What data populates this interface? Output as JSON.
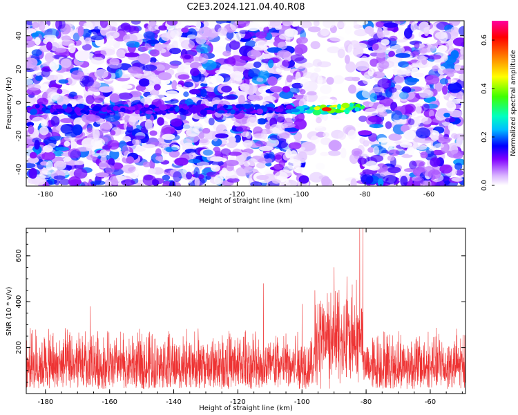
{
  "title": "C2E3.2024.121.04.40.R08",
  "chart_data": [
    {
      "type": "heatmap",
      "xlabel": "Height of straight line (km)",
      "ylabel": "Frequency (Hz)",
      "xlim": [
        -186,
        -49
      ],
      "ylim": [
        -50,
        49
      ],
      "xticks": [
        -180,
        -160,
        -140,
        -120,
        -100,
        -80,
        -60
      ],
      "yticks": [
        -40,
        -20,
        0,
        20,
        40
      ],
      "xtick_labels": [
        "-180",
        "-160",
        "-140",
        "-120",
        "-100",
        "-80",
        "-60"
      ],
      "ytick_labels": [
        "-40",
        "-20",
        "0",
        "20",
        "40"
      ],
      "colorbar": {
        "label": "Normalized spectral amplitude",
        "range": [
          0.0,
          0.68
        ],
        "ticks": [
          0.0,
          0.2,
          0.4,
          0.6
        ],
        "tick_labels": [
          "0.0",
          "0.2",
          "0.4",
          "0.6"
        ],
        "colors": [
          "#ffffff",
          "#d9b3ff",
          "#8000ff",
          "#0000ff",
          "#00bfff",
          "#00ffc0",
          "#40ff00",
          "#ffff00",
          "#ff8000",
          "#ff0000",
          "#ff00a0"
        ]
      },
      "features": {
        "signal_band": {
          "frequency_hz": -4,
          "x_range_km": [
            -186,
            -81
          ],
          "peak_x_km": -92,
          "peak_amplitude": 0.6
        },
        "low_amplitude_gap_km": [
          -99,
          -81
        ]
      }
    },
    {
      "type": "line",
      "xlabel": "Height of straight line (km)",
      "ylabel": "SNR (10 * v/v)",
      "xlim": [
        -186,
        -49
      ],
      "ylim": [
        0,
        720
      ],
      "xticks": [
        -180,
        -160,
        -140,
        -120,
        -100,
        -80,
        -60
      ],
      "yticks": [
        200,
        400,
        600
      ],
      "xtick_labels": [
        "-180",
        "-160",
        "-140",
        "-120",
        "-100",
        "-80",
        "-60"
      ],
      "ytick_labels": [
        "200",
        "400",
        "600"
      ],
      "color": "#ee3333",
      "features": {
        "noise_floor_range": [
          20,
          300
        ],
        "spikes": [
          {
            "x": -166,
            "y": 380
          },
          {
            "x": -112,
            "y": 480
          },
          {
            "x": -100,
            "y": 390
          },
          {
            "x": -96,
            "y": 450
          },
          {
            "x": -90,
            "y": 550
          },
          {
            "x": -86,
            "y": 510
          },
          {
            "x": -82,
            "y": 720
          },
          {
            "x": -81,
            "y": 720
          }
        ],
        "elevated_region_x": [
          -96,
          -81
        ]
      }
    }
  ]
}
